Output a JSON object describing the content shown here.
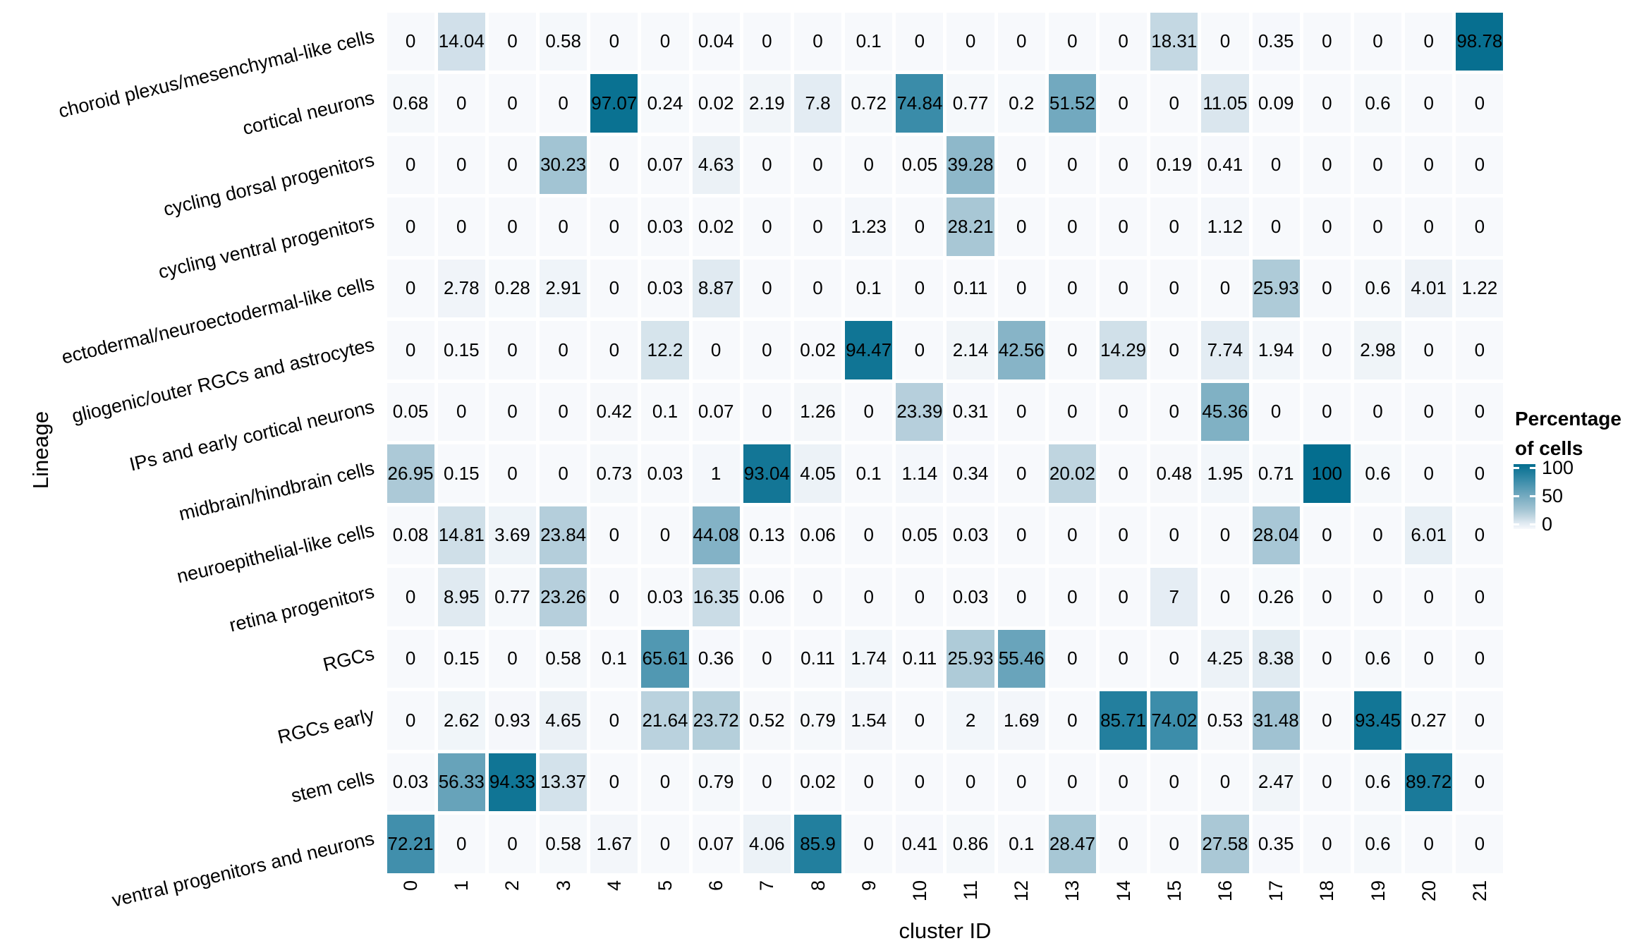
{
  "figure": {
    "x_axis_title": "cluster ID",
    "y_axis_title": "Lineage",
    "legend": {
      "title_line1": "Percentage",
      "title_line2": "of cells",
      "tick_labels": [
        "100",
        "50",
        "0"
      ]
    }
  },
  "chart_data": {
    "type": "heatmap",
    "title": "",
    "xlabel": "cluster ID",
    "ylabel": "Lineage",
    "value_range": [
      0,
      100
    ],
    "legend_title": "Percentage of cells",
    "legend_ticks": [
      100,
      50,
      0
    ],
    "x_categories": [
      "0",
      "1",
      "2",
      "3",
      "4",
      "5",
      "6",
      "7",
      "8",
      "9",
      "10",
      "11",
      "12",
      "13",
      "14",
      "15",
      "16",
      "17",
      "18",
      "19",
      "20",
      "21"
    ],
    "y_categories": [
      "choroid plexus/mesenchymal-like cells",
      "cortical neurons",
      "cycling dorsal progenitors",
      "cycling ventral progenitors",
      "ectodermal/neuroectodermal-like cells",
      "gliogenic/outer RGCs and astrocytes",
      "IPs and early cortical neurons",
      "midbrain/hindbrain cells",
      "neuroepithelial-like cells",
      "retina progenitors",
      "RGCs",
      "RGCs early",
      "stem cells",
      "ventral progenitors and neurons"
    ],
    "series": [
      {
        "name": "choroid plexus/mesenchymal-like cells",
        "values": [
          "0",
          "14.04",
          "0",
          "0.58",
          "0",
          "0",
          "0.04",
          "0",
          "0",
          "0.1",
          "0",
          "0",
          "0",
          "0",
          "0",
          "18.31",
          "0",
          "0.35",
          "0",
          "0",
          "0",
          "98.78"
        ]
      },
      {
        "name": "cortical neurons",
        "values": [
          "0.68",
          "0",
          "0",
          "0",
          "97.07",
          "0.24",
          "0.02",
          "2.19",
          "7.8",
          "0.72",
          "74.84",
          "0.77",
          "0.2",
          "51.52",
          "0",
          "0",
          "11.05",
          "0.09",
          "0",
          "0.6",
          "0",
          "0"
        ]
      },
      {
        "name": "cycling dorsal progenitors",
        "values": [
          "0",
          "0",
          "0",
          "30.23",
          "0",
          "0.07",
          "4.63",
          "0",
          "0",
          "0",
          "0.05",
          "39.28",
          "0",
          "0",
          "0",
          "0.19",
          "0.41",
          "0",
          "0",
          "0",
          "0",
          "0"
        ]
      },
      {
        "name": "cycling ventral progenitors",
        "values": [
          "0",
          "0",
          "0",
          "0",
          "0",
          "0.03",
          "0.02",
          "0",
          "0",
          "1.23",
          "0",
          "28.21",
          "0",
          "0",
          "0",
          "0",
          "1.12",
          "0",
          "0",
          "0",
          "0",
          "0"
        ]
      },
      {
        "name": "ectodermal/neuroectodermal-like cells",
        "values": [
          "0",
          "2.78",
          "0.28",
          "2.91",
          "0",
          "0.03",
          "8.87",
          "0",
          "0",
          "0.1",
          "0",
          "0.11",
          "0",
          "0",
          "0",
          "0",
          "0",
          "25.93",
          "0",
          "0.6",
          "4.01",
          "1.22"
        ]
      },
      {
        "name": "gliogenic/outer RGCs and astrocytes",
        "values": [
          "0",
          "0.15",
          "0",
          "0",
          "0",
          "12.2",
          "0",
          "0",
          "0.02",
          "94.47",
          "0",
          "2.14",
          "42.56",
          "0",
          "14.29",
          "0",
          "7.74",
          "1.94",
          "0",
          "2.98",
          "0",
          "0"
        ]
      },
      {
        "name": "IPs and early cortical neurons",
        "values": [
          "0.05",
          "0",
          "0",
          "0",
          "0.42",
          "0.1",
          "0.07",
          "0",
          "1.26",
          "0",
          "23.39",
          "0.31",
          "0",
          "0",
          "0",
          "0",
          "45.36",
          "0",
          "0",
          "0",
          "0",
          "0"
        ]
      },
      {
        "name": "midbrain/hindbrain cells",
        "values": [
          "26.95",
          "0.15",
          "0",
          "0",
          "0.73",
          "0.03",
          "1",
          "93.04",
          "4.05",
          "0.1",
          "1.14",
          "0.34",
          "0",
          "20.02",
          "0",
          "0.48",
          "1.95",
          "0.71",
          "100",
          "0.6",
          "0",
          "0"
        ]
      },
      {
        "name": "neuroepithelial-like cells",
        "values": [
          "0.08",
          "14.81",
          "3.69",
          "23.84",
          "0",
          "0",
          "44.08",
          "0.13",
          "0.06",
          "0",
          "0.05",
          "0.03",
          "0",
          "0",
          "0",
          "0",
          "0",
          "28.04",
          "0",
          "0",
          "6.01",
          "0"
        ]
      },
      {
        "name": "retina progenitors",
        "values": [
          "0",
          "8.95",
          "0.77",
          "23.26",
          "0",
          "0.03",
          "16.35",
          "0.06",
          "0",
          "0",
          "0",
          "0.03",
          "0",
          "0",
          "0",
          "7",
          "0",
          "0.26",
          "0",
          "0",
          "0",
          "0"
        ]
      },
      {
        "name": "RGCs",
        "values": [
          "0",
          "0.15",
          "0",
          "0.58",
          "0.1",
          "65.61",
          "0.36",
          "0",
          "0.11",
          "1.74",
          "0.11",
          "25.93",
          "55.46",
          "0",
          "0",
          "0",
          "4.25",
          "8.38",
          "0",
          "0.6",
          "0",
          "0"
        ]
      },
      {
        "name": "RGCs early",
        "values": [
          "0",
          "2.62",
          "0.93",
          "4.65",
          "0",
          "21.64",
          "23.72",
          "0.52",
          "0.79",
          "1.54",
          "0",
          "2",
          "1.69",
          "0",
          "85.71",
          "74.02",
          "0.53",
          "31.48",
          "0",
          "93.45",
          "0.27",
          "0"
        ]
      },
      {
        "name": "stem cells",
        "values": [
          "0.03",
          "56.33",
          "94.33",
          "13.37",
          "0",
          "0",
          "0.79",
          "0",
          "0.02",
          "0",
          "0",
          "0",
          "0",
          "0",
          "0",
          "0",
          "0",
          "2.47",
          "0",
          "0.6",
          "89.72",
          "0"
        ]
      },
      {
        "name": "ventral progenitors and neurons",
        "values": [
          "72.21",
          "0",
          "0",
          "0.58",
          "1.67",
          "0",
          "0.07",
          "4.06",
          "85.9",
          "0",
          "0.41",
          "0.86",
          "0.1",
          "28.47",
          "0",
          "0",
          "27.58",
          "0.35",
          "0",
          "0.6",
          "0",
          "0"
        ]
      }
    ],
    "color_scale": {
      "low": "#f7f9fc",
      "high": "#046e8f",
      "stops": [
        [
          0,
          "#f7f9fc"
        ],
        [
          10,
          "#dde8f0"
        ],
        [
          20,
          "#bfd5e0"
        ],
        [
          30,
          "#a3c4d3"
        ],
        [
          50,
          "#76abc0"
        ],
        [
          75,
          "#3a8ca9"
        ],
        [
          100,
          "#046e8f"
        ]
      ]
    }
  }
}
